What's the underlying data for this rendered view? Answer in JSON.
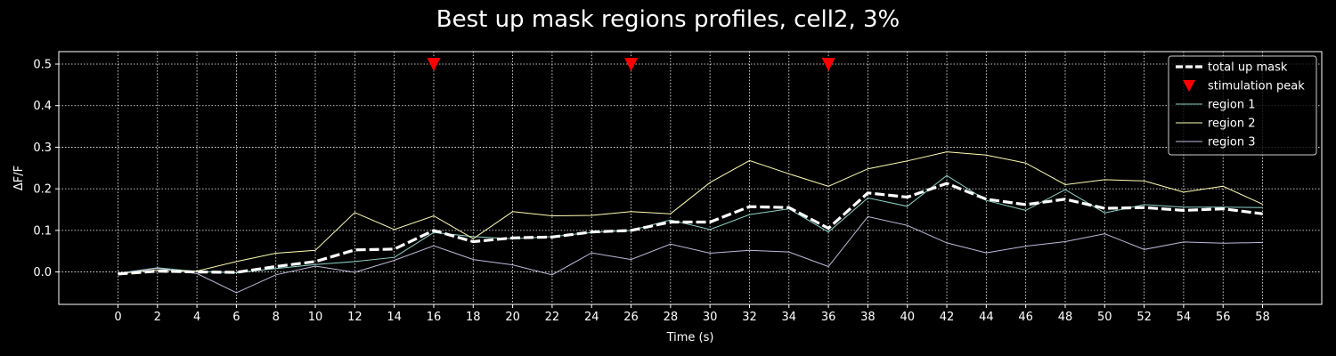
{
  "chart_data": {
    "type": "line",
    "title": "Best up mask regions profiles, cell2, 3%",
    "xlabel": "Time (s)",
    "ylabel": "ΔF/F",
    "xlim": [
      -3,
      61
    ],
    "ylim": [
      -0.078,
      0.53
    ],
    "xticks": [
      0,
      2,
      4,
      6,
      8,
      10,
      12,
      14,
      16,
      18,
      20,
      22,
      24,
      26,
      28,
      30,
      32,
      34,
      36,
      38,
      40,
      42,
      44,
      46,
      48,
      50,
      52,
      54,
      56,
      58
    ],
    "yticks": [
      0.0,
      0.1,
      0.2,
      0.3,
      0.4,
      0.5
    ],
    "ytick_labels": [
      "0.0",
      "0.1",
      "0.2",
      "0.3",
      "0.4",
      "0.5"
    ],
    "grid": true,
    "legend_position": "top-right",
    "x": [
      0,
      2,
      4,
      6,
      8,
      10,
      12,
      14,
      16,
      18,
      20,
      22,
      24,
      26,
      28,
      30,
      32,
      34,
      36,
      38,
      40,
      42,
      44,
      46,
      48,
      50,
      52,
      54,
      56,
      58
    ],
    "series": [
      {
        "name": "total up mask",
        "color": "#ffffff",
        "style": "dashed-thick",
        "values": [
          -0.005,
          0.002,
          0.0,
          -0.001,
          0.013,
          0.025,
          0.053,
          0.055,
          0.1,
          0.073,
          0.082,
          0.084,
          0.096,
          0.1,
          0.12,
          0.12,
          0.157,
          0.155,
          0.105,
          0.19,
          0.18,
          0.213,
          0.175,
          0.162,
          0.175,
          0.153,
          0.155,
          0.148,
          0.152,
          0.14
        ]
      },
      {
        "name": "region 1",
        "color": "#8dd3c7",
        "style": "thin",
        "values": [
          -0.003,
          0.01,
          0.001,
          -0.002,
          0.008,
          0.018,
          0.025,
          0.035,
          0.095,
          0.085,
          0.08,
          0.085,
          0.095,
          0.1,
          0.125,
          0.102,
          0.138,
          0.152,
          0.096,
          0.178,
          0.158,
          0.232,
          0.172,
          0.148,
          0.198,
          0.142,
          0.162,
          0.156,
          0.156,
          0.155
        ]
      },
      {
        "name": "region 2",
        "color": "#ffffb3",
        "style": "thin",
        "values": [
          -0.004,
          0.005,
          0.002,
          0.025,
          0.045,
          0.052,
          0.143,
          0.102,
          0.135,
          0.08,
          0.145,
          0.135,
          0.136,
          0.145,
          0.14,
          0.215,
          0.268,
          0.236,
          0.206,
          0.248,
          0.267,
          0.289,
          0.281,
          0.262,
          0.21,
          0.222,
          0.219,
          0.192,
          0.206,
          0.163
        ]
      },
      {
        "name": "region 3",
        "color": "#bebada",
        "style": "thin",
        "values": [
          -0.004,
          0.009,
          -0.004,
          -0.05,
          -0.007,
          0.014,
          -0.001,
          0.028,
          0.063,
          0.03,
          0.017,
          -0.007,
          0.046,
          0.03,
          0.067,
          0.045,
          0.052,
          0.048,
          0.013,
          0.133,
          0.112,
          0.07,
          0.046,
          0.062,
          0.073,
          0.092,
          0.054,
          0.072,
          0.069,
          0.071
        ]
      }
    ],
    "stimulation_peaks": {
      "name": "stimulation peak",
      "color": "#ff0000",
      "x": [
        16,
        26,
        36
      ],
      "y": 0.5
    },
    "legend_order": [
      "total up mask",
      "stimulation peak",
      "region 1",
      "region 2",
      "region 3"
    ]
  }
}
